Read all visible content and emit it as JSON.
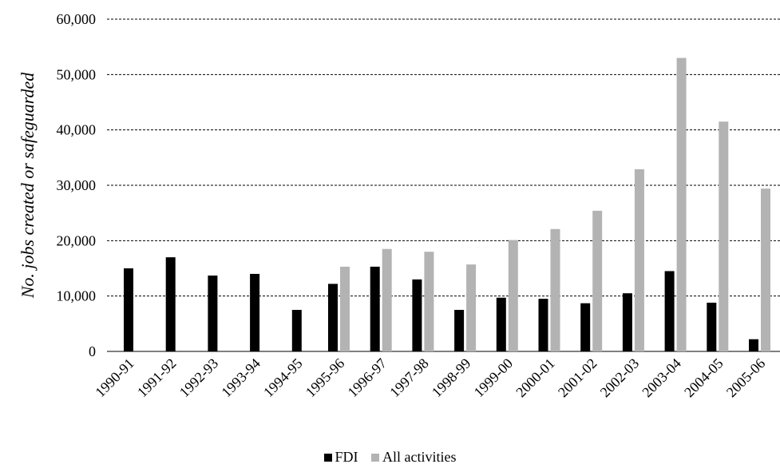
{
  "chart_data": {
    "type": "bar",
    "title": "",
    "xlabel": "",
    "ylabel": "No. jobs created or safeguarded",
    "ylim": [
      0,
      60000
    ],
    "yticks": [
      0,
      10000,
      20000,
      30000,
      40000,
      50000,
      60000
    ],
    "ytick_labels": [
      "0",
      "10,000",
      "20,000",
      "30,000",
      "40,000",
      "50,000",
      "60,000"
    ],
    "grid": "horizontal dashed",
    "legend_position": "bottom",
    "categories": [
      "1990-91",
      "1991-92",
      "1992-93",
      "1993-94",
      "1994-95",
      "1995-96",
      "1996-97",
      "1997-98",
      "1998-99",
      "1999-00",
      "2000-01",
      "2001-02",
      "2002-03",
      "2003-04",
      "2004-05",
      "2005-06"
    ],
    "series": [
      {
        "name": "FDI",
        "color": "#000000",
        "values": [
          15000,
          17000,
          13700,
          14000,
          7500,
          12200,
          15300,
          13000,
          7500,
          9700,
          9500,
          8700,
          10500,
          14500,
          8800,
          2200
        ]
      },
      {
        "name": "All activities",
        "color": "#b3b3b3",
        "values": [
          null,
          null,
          null,
          null,
          null,
          15300,
          18500,
          18000,
          15700,
          20100,
          22100,
          25400,
          32900,
          53000,
          41500,
          29400
        ]
      }
    ]
  }
}
